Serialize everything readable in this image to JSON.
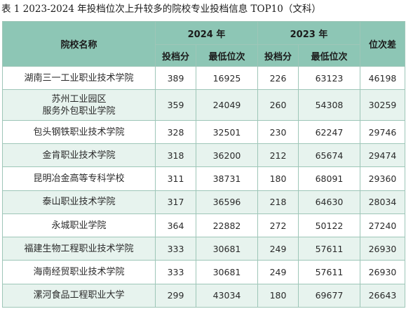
{
  "caption": "表 1  2023-2024 年投档位次上升较多的院校专业投档信息 TOP10（文科）",
  "header": {
    "school": "院校名称",
    "year2024": "2024 年",
    "year2023": "2023 年",
    "score": "投档分",
    "min_rank": "最低位次",
    "rank_diff": "位次差"
  },
  "rows": [
    {
      "name": "湖南三一工业职业技术学院",
      "s24": "389",
      "r24": "16925",
      "s23": "226",
      "r23": "63123",
      "diff": "46198"
    },
    {
      "name": "苏州工业园区\n服务外包职业学院",
      "s24": "359",
      "r24": "24049",
      "s23": "260",
      "r23": "54308",
      "diff": "30259"
    },
    {
      "name": "包头钢铁职业技术学院",
      "s24": "328",
      "r24": "32501",
      "s23": "230",
      "r23": "62247",
      "diff": "29746"
    },
    {
      "name": "金肯职业技术学院",
      "s24": "318",
      "r24": "36200",
      "s23": "212",
      "r23": "65674",
      "diff": "29474"
    },
    {
      "name": "昆明冶金高等专科学校",
      "s24": "311",
      "r24": "38731",
      "s23": "180",
      "r23": "68091",
      "diff": "29360"
    },
    {
      "name": "泰山职业技术学院",
      "s24": "317",
      "r24": "36596",
      "s23": "218",
      "r23": "64630",
      "diff": "28034"
    },
    {
      "name": "永城职业学院",
      "s24": "364",
      "r24": "22882",
      "s23": "272",
      "r23": "50122",
      "diff": "27240"
    },
    {
      "name": "福建生物工程职业技术学院",
      "s24": "333",
      "r24": "30681",
      "s23": "249",
      "r23": "57611",
      "diff": "26930"
    },
    {
      "name": "海南经贸职业技术学院",
      "s24": "333",
      "r24": "30681",
      "s23": "249",
      "r23": "57611",
      "diff": "26930"
    },
    {
      "name": "漯河食品工程职业大学",
      "s24": "299",
      "r24": "43034",
      "s23": "180",
      "r23": "69677",
      "diff": "26643"
    }
  ]
}
